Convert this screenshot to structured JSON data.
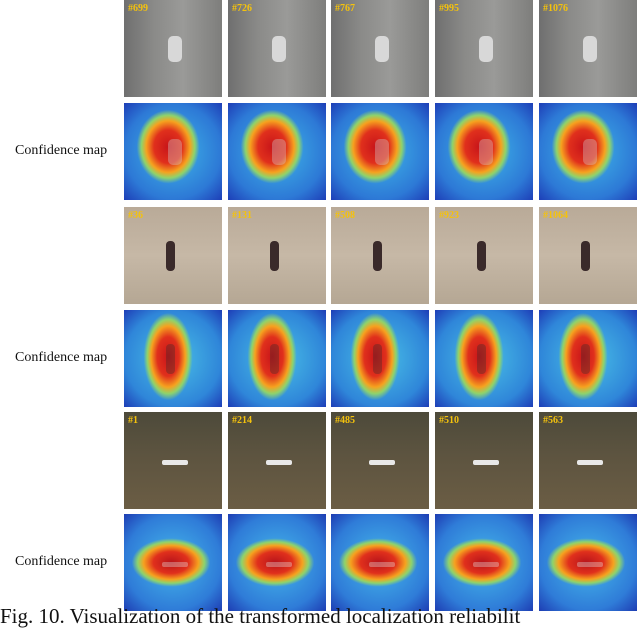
{
  "groups": [
    {
      "frames": [
        "#699",
        "#726",
        "#767",
        "#995",
        "#1076"
      ],
      "map_label": "Confidence map"
    },
    {
      "frames": [
        "#36",
        "#131",
        "#508",
        "#923",
        "#1064"
      ],
      "map_label": "Confidence map"
    },
    {
      "frames": [
        "#1",
        "#214",
        "#485",
        "#510",
        "#563"
      ],
      "map_label": "Confidence map"
    }
  ],
  "caption": "Fig. 10. Visualization of the transformed localization reliabilit"
}
